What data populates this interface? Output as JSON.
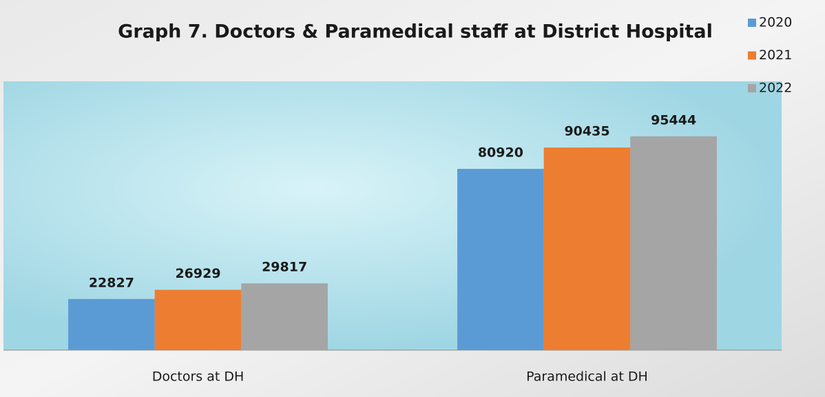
{
  "chart_data": {
    "type": "bar",
    "title": "Graph 7. Doctors & Paramedical staff at District Hospital",
    "categories": [
      "Doctors at DH",
      "Paramedical at DH"
    ],
    "series": [
      {
        "name": "2020",
        "color": "#5b9bd5",
        "values": [
          22827,
          80920
        ]
      },
      {
        "name": "2021",
        "color": "#ed7d31",
        "values": [
          26929,
          90435
        ]
      },
      {
        "name": "2022",
        "color": "#a5a5a5",
        "values": [
          29817,
          95444
        ]
      }
    ],
    "ylim": [
      0,
      120000
    ],
    "legend": "top-right"
  }
}
